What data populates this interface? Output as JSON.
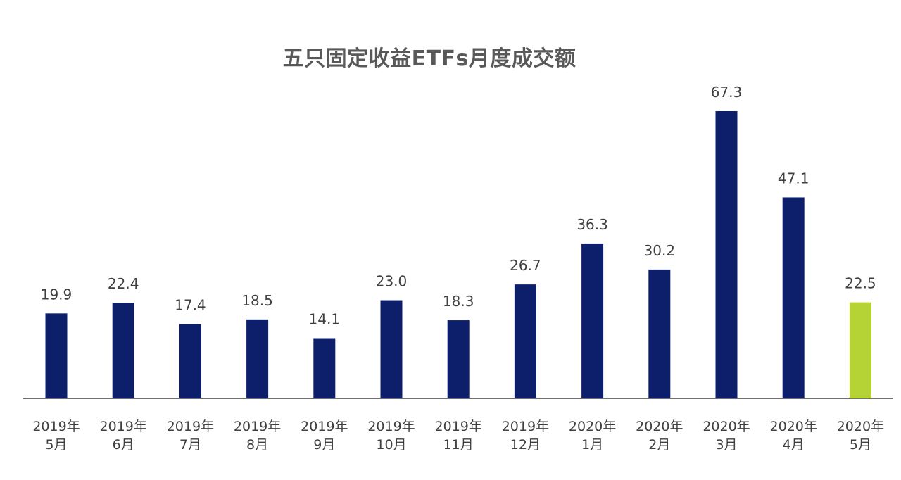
{
  "chart_data": {
    "type": "bar",
    "title": "五只固定收益ETFs月度成交额",
    "categories": [
      [
        "2019年",
        "5月"
      ],
      [
        "2019年",
        "6月"
      ],
      [
        "2019年",
        "7月"
      ],
      [
        "2019年",
        "8月"
      ],
      [
        "2019年",
        "9月"
      ],
      [
        "2019年",
        "10月"
      ],
      [
        "2019年",
        "11月"
      ],
      [
        "2019年",
        "12月"
      ],
      [
        "2020年",
        "1月"
      ],
      [
        "2020年",
        "2月"
      ],
      [
        "2020年",
        "3月"
      ],
      [
        "2020年",
        "4月"
      ],
      [
        "2020年",
        "5月"
      ]
    ],
    "values": [
      19.9,
      22.4,
      17.4,
      18.5,
      14.1,
      23.0,
      18.3,
      26.7,
      36.3,
      30.2,
      67.3,
      47.1,
      22.5
    ],
    "value_labels": [
      "19.9",
      "22.4",
      "17.4",
      "18.5",
      "14.1",
      "23.0",
      "18.3",
      "26.7",
      "36.3",
      "30.2",
      "67.3",
      "47.1",
      "22.5"
    ],
    "ylim": [
      0,
      67.3
    ],
    "grid": false,
    "legend": "none",
    "colors": {
      "bar": "#0d1f6b",
      "highlight_bar": "#b5d334",
      "axis": "#404040"
    },
    "highlight_index": 12
  }
}
